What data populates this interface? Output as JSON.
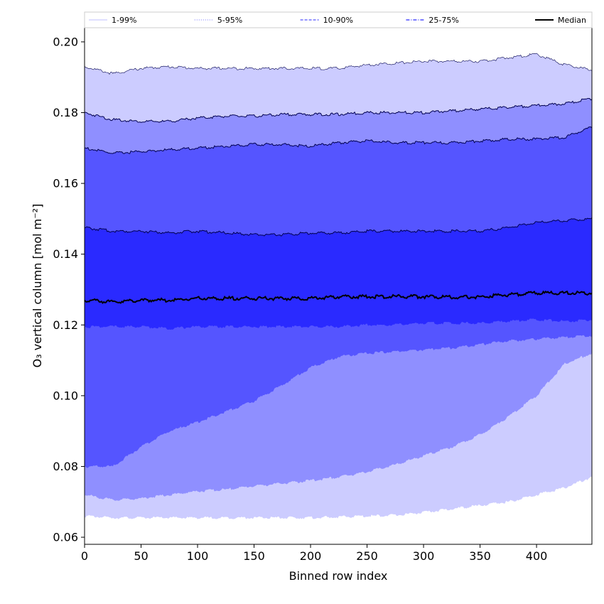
{
  "chart_data": {
    "type": "area",
    "xlabel": "Binned row index",
    "ylabel": "O₃ vertical column [mol m⁻²]",
    "xlim": [
      0,
      449
    ],
    "ylim": [
      0.058,
      0.204
    ],
    "x_ticks": [
      0,
      50,
      100,
      150,
      200,
      250,
      300,
      350,
      400
    ],
    "y_ticks": [
      0.06,
      0.08,
      0.1,
      0.12,
      0.14,
      0.16,
      0.18,
      0.2
    ],
    "x_tick_labels": [
      "0",
      "50",
      "100",
      "150",
      "200",
      "250",
      "300",
      "350",
      "400"
    ],
    "y_tick_labels": [
      "0.06",
      "0.08",
      "0.10",
      "0.12",
      "0.14",
      "0.16",
      "0.18",
      "0.20"
    ],
    "grid": false,
    "legend_position": "top",
    "legend": [
      {
        "label": "1-99%",
        "color": "#ccccff",
        "style": "solid"
      },
      {
        "label": "5-95%",
        "color": "#8f8fff",
        "style": "dotted"
      },
      {
        "label": "10-90%",
        "color": "#5555ff",
        "style": "dashed"
      },
      {
        "label": "25-75%",
        "color": "#2a2aff",
        "style": "dashdot"
      },
      {
        "label": "Median",
        "color": "#000000",
        "style": "solid"
      }
    ],
    "x": [
      0,
      25,
      50,
      75,
      100,
      125,
      150,
      175,
      200,
      225,
      250,
      275,
      300,
      325,
      350,
      375,
      400,
      425,
      449
    ],
    "bands": [
      {
        "name": "1-99%",
        "color": "#ccccff",
        "lower": [
          0.066,
          0.0655,
          0.0655,
          0.0655,
          0.0655,
          0.0655,
          0.0655,
          0.0655,
          0.0655,
          0.0657,
          0.066,
          0.0662,
          0.067,
          0.068,
          0.069,
          0.07,
          0.072,
          0.074,
          0.077
        ],
        "upper": [
          0.193,
          0.191,
          0.1925,
          0.193,
          0.1925,
          0.1925,
          0.1925,
          0.1925,
          0.1925,
          0.1925,
          0.1935,
          0.194,
          0.1945,
          0.1945,
          0.1945,
          0.1955,
          0.1965,
          0.1935,
          0.192
        ]
      },
      {
        "name": "5-95%",
        "color": "#8f8fff",
        "lower": [
          0.072,
          0.0705,
          0.071,
          0.072,
          0.073,
          0.0735,
          0.0745,
          0.0752,
          0.076,
          0.077,
          0.0785,
          0.0805,
          0.083,
          0.0855,
          0.089,
          0.094,
          0.1,
          0.109,
          0.112
        ],
        "upper": [
          0.18,
          0.178,
          0.1775,
          0.1775,
          0.1785,
          0.179,
          0.179,
          0.1795,
          0.1795,
          0.1795,
          0.18,
          0.18,
          0.18,
          0.1805,
          0.181,
          0.1815,
          0.182,
          0.1825,
          0.184
        ]
      },
      {
        "name": "10-90%",
        "color": "#5555ff",
        "lower": [
          0.08,
          0.08,
          0.0855,
          0.09,
          0.0925,
          0.0955,
          0.0985,
          0.103,
          0.108,
          0.111,
          0.112,
          0.1125,
          0.113,
          0.1135,
          0.1145,
          0.1155,
          0.116,
          0.1165,
          0.117
        ],
        "upper": [
          0.17,
          0.1685,
          0.169,
          0.1695,
          0.17,
          0.1705,
          0.171,
          0.171,
          0.1705,
          0.1715,
          0.172,
          0.1715,
          0.1715,
          0.1715,
          0.172,
          0.1725,
          0.1725,
          0.173,
          0.176
        ]
      },
      {
        "name": "25-75%",
        "color": "#2a2aff",
        "lower": [
          0.1195,
          0.1195,
          0.1195,
          0.119,
          0.1195,
          0.1195,
          0.1195,
          0.1195,
          0.1195,
          0.1195,
          0.12,
          0.12,
          0.1205,
          0.1205,
          0.1205,
          0.121,
          0.1215,
          0.121,
          0.1215
        ],
        "upper": [
          0.1475,
          0.1465,
          0.1465,
          0.146,
          0.1465,
          0.146,
          0.1455,
          0.1455,
          0.146,
          0.146,
          0.1465,
          0.1465,
          0.1465,
          0.1465,
          0.1465,
          0.1475,
          0.149,
          0.1495,
          0.15
        ]
      }
    ],
    "median": {
      "name": "Median",
      "color": "#000000",
      "values": [
        0.127,
        0.1265,
        0.127,
        0.127,
        0.1275,
        0.1275,
        0.1275,
        0.1275,
        0.1275,
        0.128,
        0.128,
        0.128,
        0.128,
        0.1278,
        0.128,
        0.1285,
        0.129,
        0.129,
        0.129
      ]
    }
  }
}
